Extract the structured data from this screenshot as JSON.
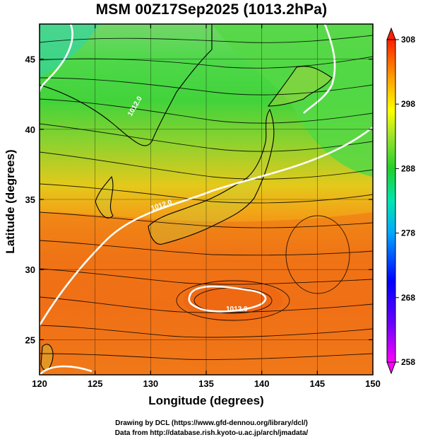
{
  "title": "MSM 00Z17Sep2025 (1013.2hPa)",
  "map": {
    "lon_range": [
      120,
      150
    ],
    "lat_range": [
      22.5,
      47.5
    ],
    "lon_ticks": [
      120,
      125,
      130,
      135,
      140,
      145,
      150
    ],
    "lat_ticks": [
      25,
      30,
      35,
      40,
      45
    ],
    "lon_tick_labels": [
      "120",
      "125",
      "130",
      "135",
      "140",
      "145",
      "150"
    ],
    "lat_tick_labels": [
      "25",
      "30",
      "35",
      "40",
      "45"
    ],
    "xlabel": "Longitude (degrees)",
    "ylabel": "Latitude  (degrees)",
    "grid": true,
    "field": "temperature (K) shaded, wind streamlines, white contours",
    "contour_labels": [
      "1012.0",
      "1012.0",
      "1012.0"
    ]
  },
  "colorbar": {
    "min": 258,
    "max": 308,
    "tick_labels": [
      "308",
      "298",
      "288",
      "278",
      "268",
      "258"
    ],
    "colors": [
      "#ff00ff",
      "#0000ff",
      "#00c8ff",
      "#00ff88",
      "#33dd33",
      "#ffff00",
      "#ffa000",
      "#ff2000"
    ]
  },
  "credits": {
    "line1": "Drawing by DCL (https://www.gfd-dennou.org/library/dcl/)",
    "line2": "Data from http://database.rish.kyoto-u.ac.jp/arch/jmadata/"
  }
}
